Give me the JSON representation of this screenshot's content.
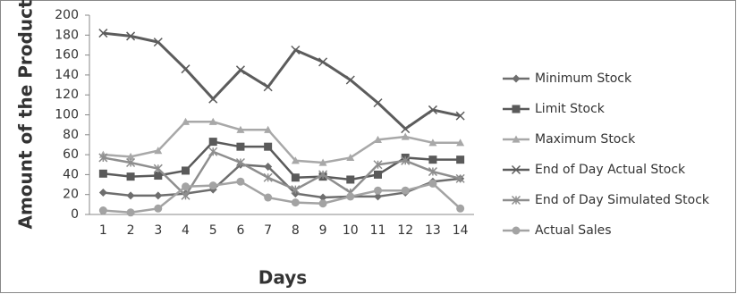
{
  "chart_data": {
    "type": "line",
    "x_label": "Days",
    "y_label": "Amount of the Product",
    "categories": [
      "1",
      "2",
      "3",
      "4",
      "5",
      "6",
      "7",
      "8",
      "9",
      "10",
      "11",
      "12",
      "13",
      "14"
    ],
    "ylim": [
      0,
      200
    ],
    "yticks": [
      0,
      20,
      40,
      60,
      80,
      100,
      120,
      140,
      160,
      180,
      200
    ],
    "grid": false,
    "legend": "right",
    "series": [
      {
        "name": "Minimum Stock",
        "color": "#6e6e6e",
        "marker": "diamond",
        "values": [
          22,
          19,
          19,
          21,
          25,
          50,
          48,
          21,
          17,
          18,
          18,
          22,
          33,
          36
        ]
      },
      {
        "name": "Limit Stock",
        "color": "#5a5a5a",
        "marker": "square",
        "values": [
          41,
          38,
          39,
          44,
          73,
          68,
          68,
          37,
          38,
          35,
          40,
          57,
          55,
          55
        ]
      },
      {
        "name": "Maximum Stock",
        "color": "#a8a8a8",
        "marker": "triangle",
        "values": [
          60,
          58,
          64,
          93,
          93,
          85,
          85,
          54,
          52,
          57,
          75,
          78,
          72,
          72
        ]
      },
      {
        "name": "End of Day Actual Stock",
        "color": "#5c5c5c",
        "marker": "x",
        "values": [
          182,
          179,
          173,
          146,
          116,
          145,
          128,
          165,
          153,
          135,
          112,
          86,
          105,
          99
        ]
      },
      {
        "name": "End of Day Simulated Stock",
        "color": "#8e8e8e",
        "marker": "star",
        "values": [
          57,
          52,
          46,
          19,
          63,
          52,
          37,
          25,
          40,
          22,
          50,
          54,
          43,
          36
        ]
      },
      {
        "name": "Actual Sales",
        "color": "#a3a3a3",
        "marker": "circle",
        "values": [
          4,
          2,
          6,
          28,
          29,
          33,
          17,
          12,
          11,
          18,
          24,
          24,
          31,
          6
        ]
      }
    ]
  }
}
